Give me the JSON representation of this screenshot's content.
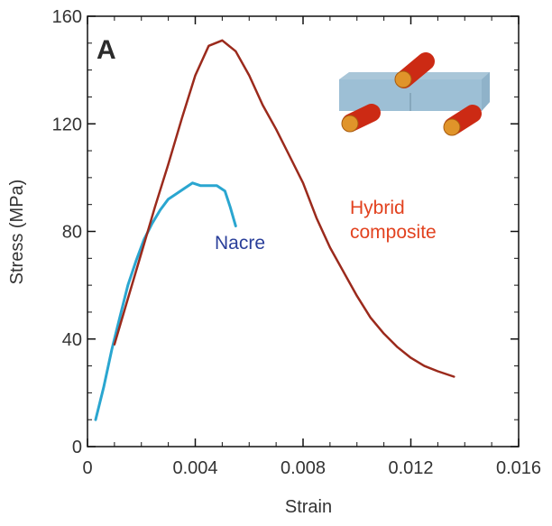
{
  "chart_data": {
    "type": "line",
    "panel_label": "A",
    "xlabel": "Strain",
    "ylabel": "Stress (MPa)",
    "xlim": [
      0,
      0.016
    ],
    "ylim": [
      0,
      160
    ],
    "xticks": [
      "0",
      "0.004",
      "0.008",
      "0.012",
      "0.016"
    ],
    "yticks": [
      "0",
      "40",
      "80",
      "120",
      "160"
    ],
    "grid": false,
    "series": [
      {
        "name": "Nacre",
        "color": "#2aa6d0",
        "label_color": "#2a3f9a",
        "x": [
          0.0003,
          0.0006,
          0.0009,
          0.0012,
          0.0015,
          0.0018,
          0.0021,
          0.0024,
          0.0027,
          0.003,
          0.0033,
          0.0036,
          0.0039,
          0.0042,
          0.0045,
          0.0048,
          0.0051,
          0.0053,
          0.0055
        ],
        "y": [
          10,
          22,
          36,
          48,
          60,
          69,
          77,
          83,
          88,
          92,
          94,
          96,
          98,
          97,
          97,
          97,
          95,
          89,
          82
        ]
      },
      {
        "name": "Hybrid composite",
        "label_lines": [
          "Hybrid",
          "composite"
        ],
        "color": "#9b2a1c",
        "label_color": "#e2421f",
        "x": [
          0.001,
          0.0015,
          0.002,
          0.0025,
          0.003,
          0.0035,
          0.004,
          0.0045,
          0.005,
          0.0055,
          0.006,
          0.0065,
          0.007,
          0.0075,
          0.008,
          0.0085,
          0.009,
          0.0095,
          0.01,
          0.0105,
          0.011,
          0.0115,
          0.012,
          0.0125,
          0.013,
          0.0136
        ],
        "y": [
          38,
          55,
          72,
          89,
          105,
          122,
          138,
          149,
          151,
          147,
          138,
          127,
          118,
          108,
          98,
          85,
          74,
          65,
          56,
          48,
          42,
          37,
          33,
          30,
          28,
          26
        ]
      }
    ]
  }
}
